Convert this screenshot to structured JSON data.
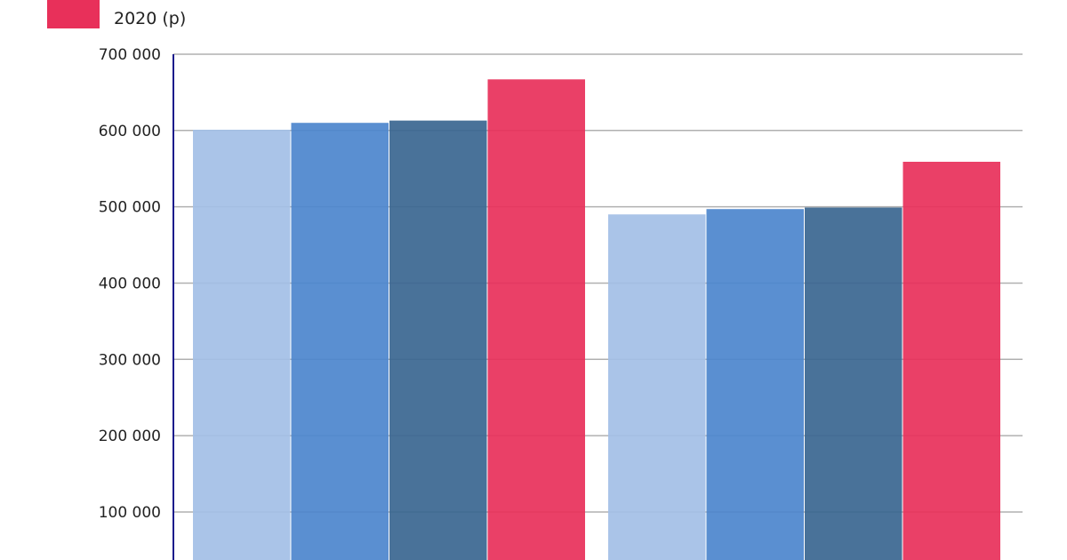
{
  "chart_data": {
    "type": "bar",
    "title": "",
    "xlabel": "",
    "ylabel": "",
    "ylim": [
      0,
      700000
    ],
    "yticks": [
      100000,
      200000,
      300000,
      400000,
      500000,
      600000,
      700000
    ],
    "ytick_labels": [
      "100 000",
      "200 000",
      "300 000",
      "400 000",
      "500 000",
      "600 000",
      "700 000"
    ],
    "grid": true,
    "legend": {
      "placement": "top-left",
      "entries": [
        {
          "label": "2020 (p)",
          "color": "#e8305a"
        }
      ]
    },
    "series": [
      {
        "color": "#a3bfe6",
        "values": [
          601000,
          490000
        ]
      },
      {
        "color": "#4c86cd",
        "values": [
          610000,
          497000
        ]
      },
      {
        "color": "#3a6690",
        "values": [
          613000,
          499000
        ]
      },
      {
        "name": "2020 (p)",
        "color": "#e8305a",
        "values": [
          667000,
          559000
        ]
      }
    ],
    "axis_color": "#1a1a8c",
    "grid_color": "#b0b0b0"
  }
}
